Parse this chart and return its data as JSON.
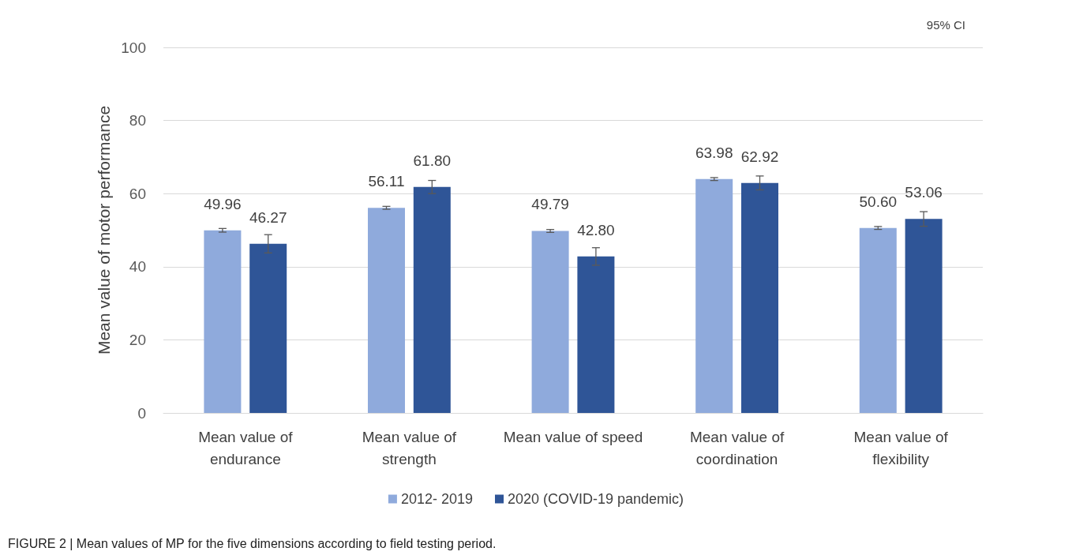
{
  "chart_data": {
    "type": "bar",
    "ylabel": "Mean value of motor performance",
    "categories": [
      "Mean value of\nendurance",
      "Mean value of\nstrength",
      "Mean value of speed",
      "Mean value of\ncoordination",
      "Mean value of\nflexibility"
    ],
    "series": [
      {
        "name": "2012- 2019",
        "color": "#8faadc",
        "values": [
          49.96,
          56.11,
          49.79,
          63.98,
          50.6
        ],
        "value_labels": [
          "49.96",
          "56.11",
          "49.79",
          "63.98",
          "50.60"
        ],
        "errors": [
          0.5,
          0.4,
          0.4,
          0.4,
          0.4
        ]
      },
      {
        "name": "2020 (COVID-19 pandemic)",
        "color": "#2f5597",
        "values": [
          46.27,
          61.8,
          42.8,
          62.92,
          53.06
        ],
        "value_labels": [
          "46.27",
          "61.80",
          "42.80",
          "62.92",
          "53.06"
        ],
        "errors": [
          2.5,
          1.8,
          2.4,
          1.9,
          2.0
        ]
      }
    ],
    "ylim": [
      0,
      100
    ],
    "yticks": [
      0,
      20,
      40,
      60,
      80,
      100
    ],
    "grid": "y",
    "legend": "bottom",
    "annotations": [
      "95% CI",
      "FIGURE 2 | Mean values of MP for the five dimensions according to field testing period."
    ]
  }
}
